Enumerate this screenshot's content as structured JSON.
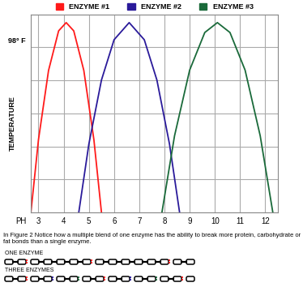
{
  "chart_data": {
    "type": "line",
    "xlabel": "PH",
    "ylabel": "TEMPERATURE",
    "annotations": [
      {
        "text": "98° F",
        "y": 5.2
      }
    ],
    "series": [
      {
        "name": "ENZYME #1",
        "color": "#ff1a1a",
        "x": [
          2.7,
          3.0,
          3.4,
          3.8,
          4.1,
          4.4,
          4.8,
          5.2,
          5.5
        ],
        "values": [
          0,
          2.2,
          4.3,
          5.5,
          5.75,
          5.5,
          4.3,
          2.2,
          0
        ]
      },
      {
        "name": "ENZYME #2",
        "color": "#2a1a9a",
        "x": [
          4.6,
          5.0,
          5.5,
          6.0,
          6.6,
          7.2,
          7.7,
          8.2,
          8.6
        ],
        "values": [
          0,
          2.07,
          4.01,
          5.23,
          5.75,
          5.23,
          4.01,
          2.07,
          0
        ]
      },
      {
        "name": "ENZYME #3",
        "color": "#1a6a3a",
        "x": [
          7.9,
          8.4,
          9.0,
          9.6,
          10.1,
          10.6,
          11.2,
          11.8,
          12.3
        ],
        "values": [
          0,
          2.32,
          4.31,
          5.45,
          5.75,
          5.45,
          4.31,
          2.32,
          0
        ]
      }
    ],
    "xlim": [
      2.7,
      12.5
    ],
    "xticks": [
      3,
      4,
      5,
      6,
      7,
      8,
      9,
      10,
      11,
      12
    ],
    "ylim": [
      0,
      6
    ],
    "yticks": [
      0,
      1,
      2,
      3,
      4,
      5,
      6
    ],
    "grid": true,
    "legend": "top",
    "tick_labels": "x"
  },
  "caption": "In Figure 2 Notice how a multiple blend of one enzyme has the ability to break more protein, carbohydrate or fat bonds than a single enzyme.",
  "diagram": {
    "rows": [
      {
        "label": "ONE ENZYME"
      },
      {
        "label": "THREE ENZYMES"
      }
    ]
  }
}
